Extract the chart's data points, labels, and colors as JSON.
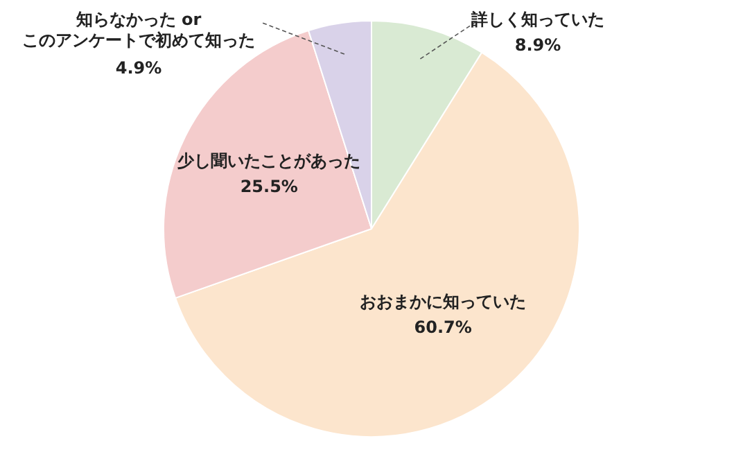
{
  "chart_data": {
    "type": "pie",
    "categories": [
      "詳しく知っていた",
      "おおまかに知っていた",
      "少し聞いたことがあった",
      "知らなかった or このアンケートで初めて知った"
    ],
    "values": [
      8.9,
      60.7,
      25.5,
      4.9
    ],
    "value_labels": [
      "8.9%",
      "60.7%",
      "25.5%",
      "4.9%"
    ],
    "colors": [
      "#d9ead3",
      "#fce5cd",
      "#f4cccc",
      "#d9d2e9"
    ]
  }
}
